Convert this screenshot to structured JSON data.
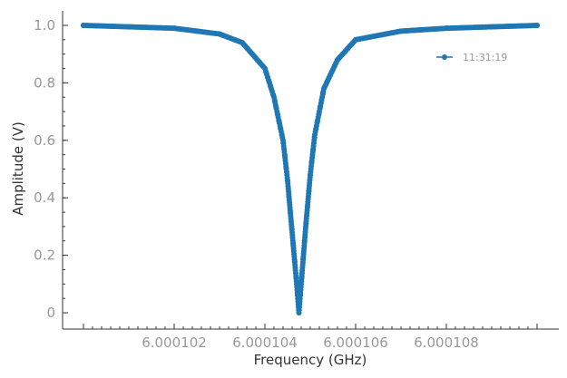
{
  "chart_data": {
    "type": "line",
    "title": "",
    "xlabel": "Frequency (GHz)",
    "ylabel": "Amplitude (V)",
    "xlim": [
      6.0001,
      6.00011
    ],
    "ylim": [
      -0.05,
      1.06
    ],
    "x_ticks": [
      6.000102,
      6.000104,
      6.000106,
      6.000108
    ],
    "x_tick_labels": [
      "6.000102",
      "6.000104",
      "6.000106",
      "6.000108"
    ],
    "y_ticks": [
      0,
      0.2,
      0.4,
      0.6,
      0.8,
      1.0
    ],
    "y_tick_labels": [
      "0",
      "0.2",
      "0.4",
      "0.6",
      "0.8",
      "1.0"
    ],
    "grid": false,
    "legend_position": "top-right",
    "series": [
      {
        "name": "11:31:19",
        "color": "#1f77b4",
        "marker": "circle",
        "x": [
          6.0001,
          6.000101,
          6.000102,
          6.000103,
          6.0001035,
          6.000104,
          6.0001042,
          6.0001044,
          6.0001045,
          6.0001046,
          6.0001047,
          6.00010475,
          6.0001048,
          6.0001049,
          6.000105,
          6.0001051,
          6.0001053,
          6.0001056,
          6.000106,
          6.000107,
          6.000108,
          6.000109,
          6.00011
        ],
        "y": [
          1.0,
          0.995,
          0.99,
          0.97,
          0.94,
          0.85,
          0.75,
          0.6,
          0.46,
          0.28,
          0.1,
          0.0,
          0.1,
          0.3,
          0.48,
          0.62,
          0.78,
          0.88,
          0.95,
          0.98,
          0.99,
          0.995,
          1.0
        ]
      }
    ]
  }
}
